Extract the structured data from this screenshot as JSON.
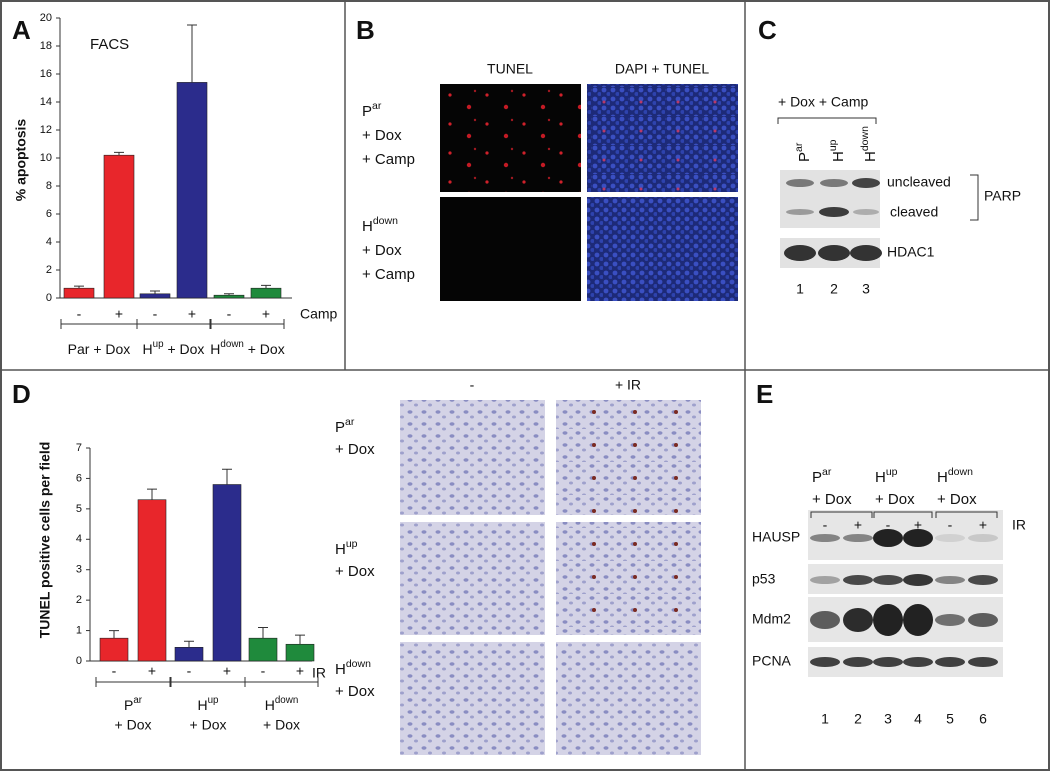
{
  "panel_letters": [
    "A",
    "B",
    "C",
    "D",
    "E"
  ],
  "chart_data": [
    {
      "type": "bar",
      "annotation": "FACS",
      "y_label": "% apoptosis",
      "categories": [
        "-",
        "+",
        "-",
        "+",
        "-",
        "+"
      ],
      "values": [
        0.7,
        10.2,
        0.3,
        15.4,
        0.2,
        0.7
      ],
      "errors": [
        0.15,
        0.2,
        0.2,
        4.1,
        0.1,
        0.2
      ],
      "colors": [
        "#e8262b",
        "#e8262b",
        "#2b2c8c",
        "#2b2c8c",
        "#1f8a3c",
        "#1f8a3c"
      ],
      "ylim": [
        0,
        20
      ],
      "yticks": [
        0,
        2,
        4,
        6,
        8,
        10,
        12,
        14,
        16,
        18,
        20
      ],
      "group_labels": [
        {
          "parts": [
            "Par + Dox"
          ]
        },
        {
          "parts": [
            "H",
            "up",
            " + Dox"
          ]
        },
        {
          "parts": [
            "H",
            "down",
            " + Dox"
          ]
        }
      ],
      "treatment_label": "Camp"
    },
    {
      "type": "bar",
      "y_label": "TUNEL positive cells per field",
      "categories": [
        "-",
        "+",
        "-",
        "+",
        "-",
        "+"
      ],
      "values": [
        0.75,
        5.3,
        0.45,
        5.8,
        0.75,
        0.55
      ],
      "errors": [
        0.25,
        0.35,
        0.2,
        0.5,
        0.35,
        0.3
      ],
      "colors": [
        "#e8262b",
        "#e8262b",
        "#2b2c8c",
        "#2b2c8c",
        "#1f8a3c",
        "#1f8a3c"
      ],
      "ylim": [
        0,
        7
      ],
      "yticks": [
        0,
        1,
        2,
        3,
        4,
        5,
        6,
        7
      ],
      "group_labels": [
        {
          "parts": [
            "P",
            "ar"
          ],
          "line2": "+ Dox"
        },
        {
          "parts": [
            "H",
            "up"
          ],
          "line2": "+ Dox"
        },
        {
          "parts": [
            "H",
            "down"
          ],
          "line2": "+ Dox"
        }
      ],
      "treatment_label": "IR"
    }
  ],
  "panel_b": {
    "columns": [
      "TUNEL",
      "DAPI + TUNEL"
    ],
    "rows": [
      {
        "parts": [
          "P",
          "ar"
        ],
        "lines": [
          "+ Dox",
          "+ Camp"
        ]
      },
      {
        "parts": [
          "H",
          "down"
        ],
        "lines": [
          "+ Dox",
          "+ Camp"
        ]
      }
    ]
  },
  "panel_c": {
    "treatment": "+ Dox + Camp",
    "lanes": [
      [
        "P",
        "ar"
      ],
      [
        "H",
        "up"
      ],
      [
        "H",
        "down"
      ]
    ],
    "bands": [
      "uncleaved",
      "cleaved"
    ],
    "protein": "PARP",
    "loading": "HDAC1",
    "lane_numbers": [
      "1",
      "2",
      "3"
    ]
  },
  "panel_d_images": {
    "columns": [
      "-",
      "+ IR"
    ],
    "rows": [
      {
        "parts": [
          "P",
          "ar"
        ],
        "lines": [
          "+ Dox"
        ]
      },
      {
        "parts": [
          "H",
          "up"
        ],
        "lines": [
          "+ Dox"
        ]
      },
      {
        "parts": [
          "H",
          "down"
        ],
        "lines": [
          "+ Dox"
        ]
      }
    ]
  },
  "panel_e": {
    "groups": [
      {
        "parts": [
          "P",
          "ar"
        ],
        "lines": [
          "+ Dox"
        ]
      },
      {
        "parts": [
          "H",
          "up"
        ],
        "lines": [
          "+ Dox"
        ]
      },
      {
        "parts": [
          "H",
          "down"
        ],
        "lines": [
          "+ Dox"
        ]
      }
    ],
    "lane_treatments": [
      "-",
      "+",
      "-",
      "+",
      "-",
      "+"
    ],
    "treatment_label": "IR",
    "rows": [
      "HAUSP",
      "p53",
      "Mdm2",
      "PCNA"
    ],
    "lane_numbers": [
      "1",
      "2",
      "3",
      "4",
      "5",
      "6"
    ]
  }
}
